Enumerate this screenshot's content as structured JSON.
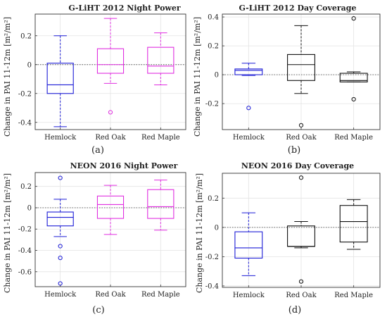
{
  "figure": {
    "captions": [
      "(a)",
      "(b)",
      "(c)",
      "(d)"
    ]
  },
  "chart_data": [
    {
      "type": "box",
      "title": "G-LiHT 2012 Night Power",
      "ylabel": "Change in PAI 11-12m [m²/m²]",
      "xlabel": "",
      "categories": [
        "Hemlock",
        "Red Oak",
        "Red Maple"
      ],
      "yticks": [
        -0.4,
        -0.2,
        0,
        0.2
      ],
      "ytick_labels": [
        "-0.4",
        "-0.2",
        "0",
        "0.2"
      ],
      "ylim": [
        -0.45,
        0.35
      ],
      "grid": true,
      "zero_line": true,
      "colors": [
        "#1c1cd6",
        "#e02fe0",
        "#e02fe0"
      ],
      "boxes": [
        {
          "whisker_low": -0.43,
          "q1": -0.2,
          "median": -0.14,
          "q3": 0.01,
          "whisker_high": 0.2,
          "outliers": []
        },
        {
          "whisker_low": -0.13,
          "q1": -0.06,
          "median": 0.0,
          "q3": 0.11,
          "whisker_high": 0.32,
          "outliers": [
            -0.33
          ]
        },
        {
          "whisker_low": -0.14,
          "q1": -0.06,
          "median": -0.01,
          "q3": 0.12,
          "whisker_high": 0.22,
          "outliers": []
        }
      ]
    },
    {
      "type": "box",
      "title": "G-LiHT 2012 Day Coverage",
      "ylabel": "Change in PAI 11-12m [m²/m²]",
      "xlabel": "",
      "categories": [
        "Hemlock",
        "Red Oak",
        "Red Maple"
      ],
      "yticks": [
        -0.2,
        0,
        0.2,
        0.4
      ],
      "ytick_labels": [
        "-0.2",
        "0",
        "0.2",
        "0.4"
      ],
      "ylim": [
        -0.38,
        0.42
      ],
      "grid": true,
      "zero_line": true,
      "colors": [
        "#1c1cd6",
        "#111111",
        "#111111"
      ],
      "boxes": [
        {
          "whisker_low": -0.005,
          "q1": 0.0,
          "median": 0.03,
          "q3": 0.04,
          "whisker_high": 0.08,
          "outliers": [
            -0.23
          ]
        },
        {
          "whisker_low": -0.13,
          "q1": -0.04,
          "median": 0.07,
          "q3": 0.14,
          "whisker_high": 0.34,
          "outliers": [
            -0.35
          ]
        },
        {
          "whisker_low": -0.05,
          "q1": -0.05,
          "median": -0.04,
          "q3": 0.01,
          "whisker_high": 0.02,
          "outliers": [
            0.39,
            -0.17
          ]
        }
      ]
    },
    {
      "type": "box",
      "title": "NEON 2016 Night Power",
      "ylabel": "Change in PAI 11-12m [m²/m²]",
      "xlabel": "",
      "categories": [
        "Hemlock",
        "Red Oak",
        "Red Maple"
      ],
      "yticks": [
        -0.6,
        -0.4,
        -0.2,
        0,
        0.2
      ],
      "ytick_labels": [
        "-0.6",
        "-0.4",
        "-0.2",
        "0",
        "0.2"
      ],
      "ylim": [
        -0.74,
        0.33
      ],
      "grid": true,
      "zero_line": true,
      "colors": [
        "#1c1cd6",
        "#e02fe0",
        "#e02fe0"
      ],
      "boxes": [
        {
          "whisker_low": -0.27,
          "q1": -0.17,
          "median": -0.09,
          "q3": -0.04,
          "whisker_high": 0.08,
          "outliers": [
            0.28,
            -0.36,
            -0.47,
            -0.71
          ]
        },
        {
          "whisker_low": -0.25,
          "q1": -0.1,
          "median": 0.03,
          "q3": 0.11,
          "whisker_high": 0.21,
          "outliers": []
        },
        {
          "whisker_low": -0.21,
          "q1": -0.1,
          "median": 0.01,
          "q3": 0.17,
          "whisker_high": 0.26,
          "outliers": []
        }
      ]
    },
    {
      "type": "box",
      "title": "NEON 2016 Day Coverage",
      "ylabel": "Change in PAI 11-12m [m²/m²]",
      "xlabel": "",
      "categories": [
        "Hemlock",
        "Red Oak",
        "Red Maple"
      ],
      "yticks": [
        -0.4,
        -0.2,
        0,
        0.2
      ],
      "ytick_labels": [
        "-0.4",
        "-0.2",
        "0",
        "0.2"
      ],
      "ylim": [
        -0.41,
        0.37
      ],
      "grid": true,
      "zero_line": true,
      "colors": [
        "#1c1cd6",
        "#111111",
        "#111111"
      ],
      "boxes": [
        {
          "whisker_low": -0.33,
          "q1": -0.21,
          "median": -0.14,
          "q3": -0.03,
          "whisker_high": 0.1,
          "outliers": []
        },
        {
          "whisker_low": -0.14,
          "q1": -0.13,
          "median": -0.13,
          "q3": 0.01,
          "whisker_high": 0.04,
          "outliers": [
            0.34,
            -0.37
          ]
        },
        {
          "whisker_low": -0.15,
          "q1": -0.1,
          "median": 0.04,
          "q3": 0.15,
          "whisker_high": 0.19,
          "outliers": []
        }
      ]
    }
  ]
}
